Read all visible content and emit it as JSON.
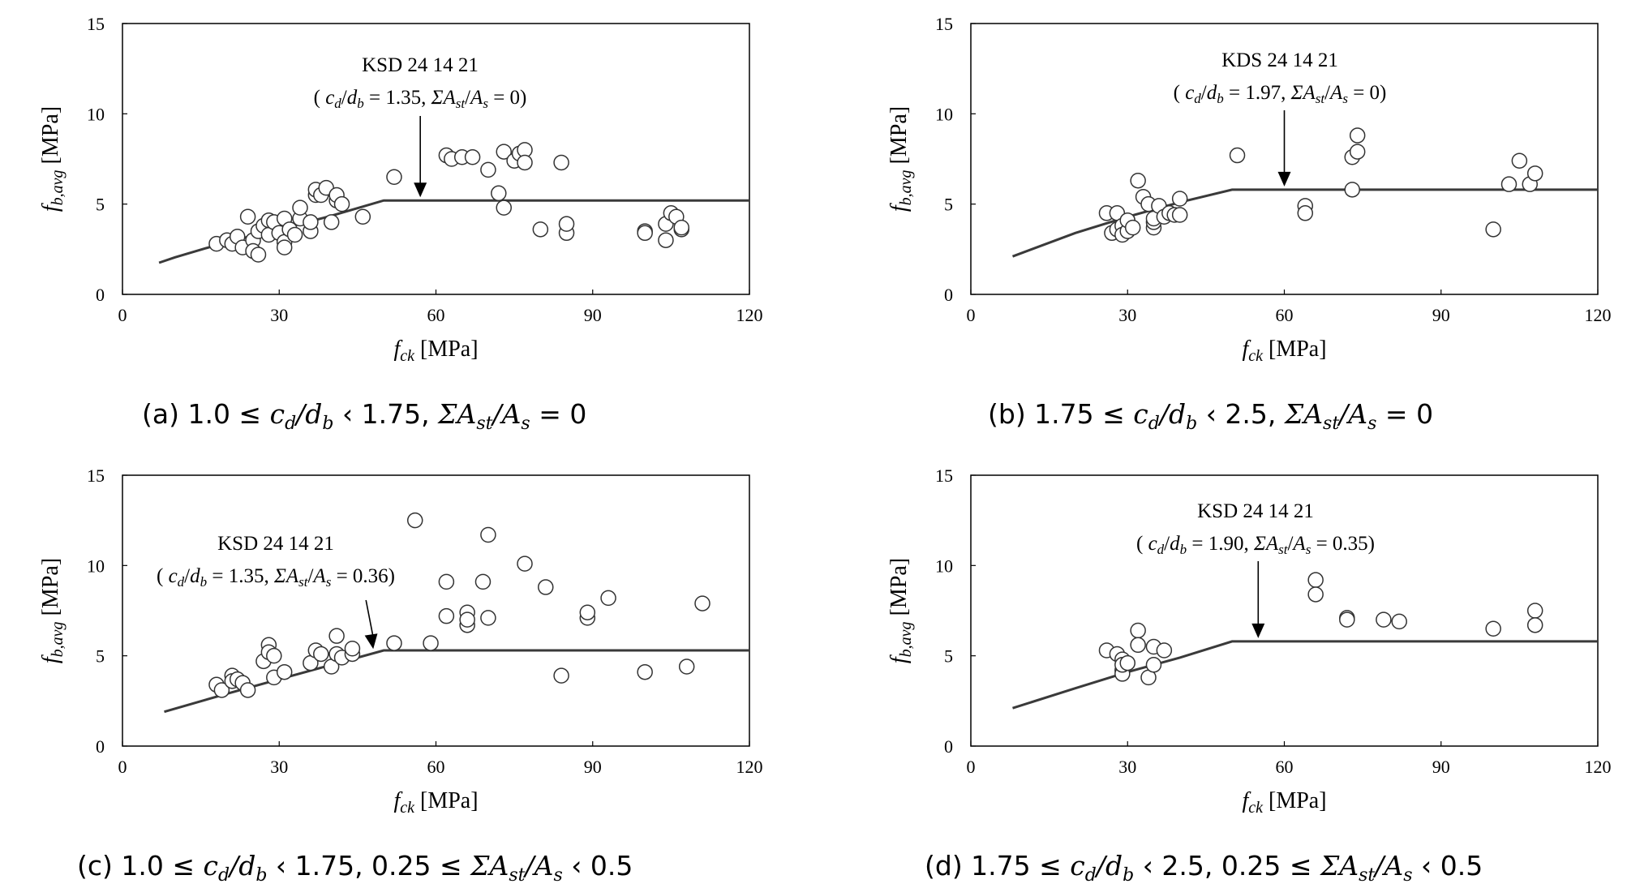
{
  "chart_data": [
    {
      "id": "a",
      "type": "scatter",
      "xlabel": {
        "base": "f",
        "sub": "ck",
        "unit": " [MPa]"
      },
      "ylabel": {
        "base": "f",
        "sub": "b,avg",
        "unit": " [MPa]"
      },
      "xlim": [
        0,
        120
      ],
      "ylim": [
        0,
        15
      ],
      "xticks": [
        0,
        30,
        60,
        90,
        120
      ],
      "yticks": [
        0,
        5,
        10,
        15
      ],
      "annotation": {
        "line1": "KSD 24 14 21",
        "cd": "1.35",
        "ratio": "0",
        "x": 57,
        "y": 5.2
      },
      "caption": {
        "label": "(a) 1.0 ≤ ",
        "mid": " ‹ 1.75, ",
        "tail": " = 0"
      },
      "model_line": [
        [
          7,
          1.75
        ],
        [
          10,
          2.05
        ],
        [
          20,
          2.9
        ],
        [
          30,
          3.6
        ],
        [
          40,
          4.35
        ],
        [
          50,
          5.2
        ],
        [
          120,
          5.2
        ]
      ],
      "points": [
        [
          18,
          2.8
        ],
        [
          20,
          3.0
        ],
        [
          21,
          2.8
        ],
        [
          22,
          3.2
        ],
        [
          23,
          2.6
        ],
        [
          24,
          4.3
        ],
        [
          25,
          3.0
        ],
        [
          25,
          2.4
        ],
        [
          26,
          3.5
        ],
        [
          26,
          2.2
        ],
        [
          27,
          3.8
        ],
        [
          28,
          3.3
        ],
        [
          28,
          4.1
        ],
        [
          29,
          4.0
        ],
        [
          30,
          3.4
        ],
        [
          31,
          2.9
        ],
        [
          31,
          2.6
        ],
        [
          31,
          4.2
        ],
        [
          32,
          3.6
        ],
        [
          33,
          3.3
        ],
        [
          34,
          4.2
        ],
        [
          34,
          4.8
        ],
        [
          36,
          3.5
        ],
        [
          36,
          4.0
        ],
        [
          37,
          5.5
        ],
        [
          37,
          5.8
        ],
        [
          38,
          5.5
        ],
        [
          39,
          5.9
        ],
        [
          40,
          4.0
        ],
        [
          41,
          5.2
        ],
        [
          41,
          5.5
        ],
        [
          42,
          5.0
        ],
        [
          46,
          4.3
        ],
        [
          52,
          6.5
        ],
        [
          62,
          7.7
        ],
        [
          63,
          7.5
        ],
        [
          65,
          7.6
        ],
        [
          67,
          7.6
        ],
        [
          70,
          6.9
        ],
        [
          72,
          5.6
        ],
        [
          73,
          4.8
        ],
        [
          73,
          7.9
        ],
        [
          75,
          7.4
        ],
        [
          76,
          7.8
        ],
        [
          77,
          8.0
        ],
        [
          77,
          7.3
        ],
        [
          80,
          3.6
        ],
        [
          84,
          7.3
        ],
        [
          85,
          3.4
        ],
        [
          85,
          3.9
        ],
        [
          100,
          3.5
        ],
        [
          100,
          3.4
        ],
        [
          104,
          3.9
        ],
        [
          104,
          3.0
        ],
        [
          105,
          4.5
        ],
        [
          106,
          4.3
        ],
        [
          107,
          3.6
        ],
        [
          107,
          3.7
        ]
      ]
    },
    {
      "id": "b",
      "type": "scatter",
      "xlabel": {
        "base": "f",
        "sub": "ck",
        "unit": " [MPa]"
      },
      "ylabel": {
        "base": "f",
        "sub": "b,avg",
        "unit": " [MPa]"
      },
      "xlim": [
        0,
        120
      ],
      "ylim": [
        0,
        15
      ],
      "xticks": [
        0,
        30,
        60,
        90,
        120
      ],
      "yticks": [
        0,
        5,
        10,
        15
      ],
      "annotation": {
        "line1": "KDS 24 14 21",
        "cd": "1.97",
        "ratio": "0",
        "x": 60,
        "y": 5.8
      },
      "caption": {
        "label": "(b) 1.75 ≤ ",
        "mid": " ‹ 2.5, ",
        "tail": " = 0"
      },
      "model_line": [
        [
          8,
          2.1
        ],
        [
          20,
          3.4
        ],
        [
          30,
          4.3
        ],
        [
          40,
          5.1
        ],
        [
          50,
          5.8
        ],
        [
          120,
          5.8
        ]
      ],
      "points": [
        [
          26,
          4.5
        ],
        [
          27,
          3.4
        ],
        [
          28,
          3.6
        ],
        [
          28,
          4.5
        ],
        [
          29,
          3.8
        ],
        [
          29,
          3.3
        ],
        [
          30,
          3.5
        ],
        [
          30,
          4.1
        ],
        [
          31,
          3.7
        ],
        [
          32,
          6.3
        ],
        [
          33,
          5.4
        ],
        [
          34,
          5.0
        ],
        [
          35,
          3.7
        ],
        [
          35,
          4.0
        ],
        [
          35,
          4.2
        ],
        [
          36,
          4.9
        ],
        [
          37,
          4.3
        ],
        [
          38,
          4.5
        ],
        [
          39,
          4.4
        ],
        [
          40,
          5.3
        ],
        [
          40,
          4.4
        ],
        [
          51,
          7.7
        ],
        [
          64,
          4.9
        ],
        [
          64,
          4.5
        ],
        [
          73,
          5.8
        ],
        [
          73,
          7.6
        ],
        [
          74,
          8.8
        ],
        [
          74,
          7.9
        ],
        [
          100,
          3.6
        ],
        [
          103,
          6.1
        ],
        [
          105,
          7.4
        ],
        [
          107,
          6.1
        ],
        [
          108,
          6.7
        ]
      ]
    },
    {
      "id": "c",
      "type": "scatter",
      "xlabel": {
        "base": "f",
        "sub": "ck",
        "unit": " [MPa]"
      },
      "ylabel": {
        "base": "f",
        "sub": "b,avg",
        "unit": " [MPa]"
      },
      "xlim": [
        0,
        120
      ],
      "ylim": [
        0,
        15
      ],
      "xticks": [
        0,
        30,
        60,
        90,
        120
      ],
      "yticks": [
        0,
        5,
        10,
        15
      ],
      "annotation": {
        "line1": "KSD 24 14 21",
        "cd": "1.35",
        "ratio": "0.36",
        "x": 48,
        "y": 5.2
      },
      "caption": {
        "label": "(c) 1.0 ≤ ",
        "mid": " ‹ 1.75, 0.25 ≤ ",
        "tail": " ‹ 0.5"
      },
      "model_line": [
        [
          8,
          1.9
        ],
        [
          20,
          2.9
        ],
        [
          30,
          3.7
        ],
        [
          40,
          4.5
        ],
        [
          50,
          5.3
        ],
        [
          120,
          5.3
        ]
      ],
      "points": [
        [
          18,
          3.4
        ],
        [
          19,
          3.1
        ],
        [
          21,
          3.9
        ],
        [
          21,
          3.6
        ],
        [
          22,
          3.7
        ],
        [
          23,
          3.5
        ],
        [
          24,
          3.1
        ],
        [
          27,
          4.7
        ],
        [
          28,
          5.6
        ],
        [
          28,
          5.2
        ],
        [
          29,
          3.8
        ],
        [
          29,
          5.0
        ],
        [
          31,
          4.1
        ],
        [
          36,
          4.6
        ],
        [
          37,
          5.3
        ],
        [
          38,
          5.1
        ],
        [
          40,
          4.4
        ],
        [
          41,
          6.1
        ],
        [
          41,
          5.1
        ],
        [
          42,
          4.9
        ],
        [
          44,
          5.1
        ],
        [
          44,
          5.4
        ],
        [
          52,
          5.7
        ],
        [
          56,
          12.5
        ],
        [
          59,
          5.7
        ],
        [
          62,
          7.2
        ],
        [
          62,
          9.1
        ],
        [
          66,
          7.4
        ],
        [
          66,
          6.7
        ],
        [
          66,
          7.0
        ],
        [
          69,
          9.1
        ],
        [
          70,
          11.7
        ],
        [
          70,
          7.1
        ],
        [
          77,
          10.1
        ],
        [
          81,
          8.8
        ],
        [
          84,
          3.9
        ],
        [
          89,
          7.1
        ],
        [
          89,
          7.4
        ],
        [
          93,
          8.2
        ],
        [
          100,
          4.1
        ],
        [
          108,
          4.4
        ],
        [
          111,
          7.9
        ]
      ]
    },
    {
      "id": "d",
      "type": "scatter",
      "xlabel": {
        "base": "f",
        "sub": "ck",
        "unit": " [MPa]"
      },
      "ylabel": {
        "base": "f",
        "sub": "b,avg",
        "unit": " [MPa]"
      },
      "xlim": [
        0,
        120
      ],
      "ylim": [
        0,
        15
      ],
      "xticks": [
        0,
        30,
        60,
        90,
        120
      ],
      "yticks": [
        0,
        5,
        10,
        15
      ],
      "annotation": {
        "line1": "KSD 24 14 21",
        "cd": "1.90",
        "ratio": "0.35",
        "x": 55,
        "y": 5.8
      },
      "caption": {
        "label": "(d) 1.75 ≤ ",
        "mid": " ‹ 2.5, 0.25 ≤ ",
        "tail": " ‹ 0.5"
      },
      "model_line": [
        [
          8,
          2.1
        ],
        [
          20,
          3.2
        ],
        [
          30,
          4.1
        ],
        [
          40,
          4.9
        ],
        [
          50,
          5.8
        ],
        [
          120,
          5.8
        ]
      ],
      "points": [
        [
          26,
          5.3
        ],
        [
          28,
          5.1
        ],
        [
          29,
          4.8
        ],
        [
          29,
          4.2
        ],
        [
          29,
          4.0
        ],
        [
          29,
          4.5
        ],
        [
          30,
          4.6
        ],
        [
          32,
          6.4
        ],
        [
          32,
          5.6
        ],
        [
          34,
          3.8
        ],
        [
          35,
          5.5
        ],
        [
          35,
          4.5
        ],
        [
          37,
          5.3
        ],
        [
          66,
          9.2
        ],
        [
          66,
          8.4
        ],
        [
          72,
          7.1
        ],
        [
          72,
          7.0
        ],
        [
          79,
          7.0
        ],
        [
          82,
          6.9
        ],
        [
          100,
          6.5
        ],
        [
          108,
          7.5
        ],
        [
          108,
          6.7
        ]
      ]
    }
  ]
}
